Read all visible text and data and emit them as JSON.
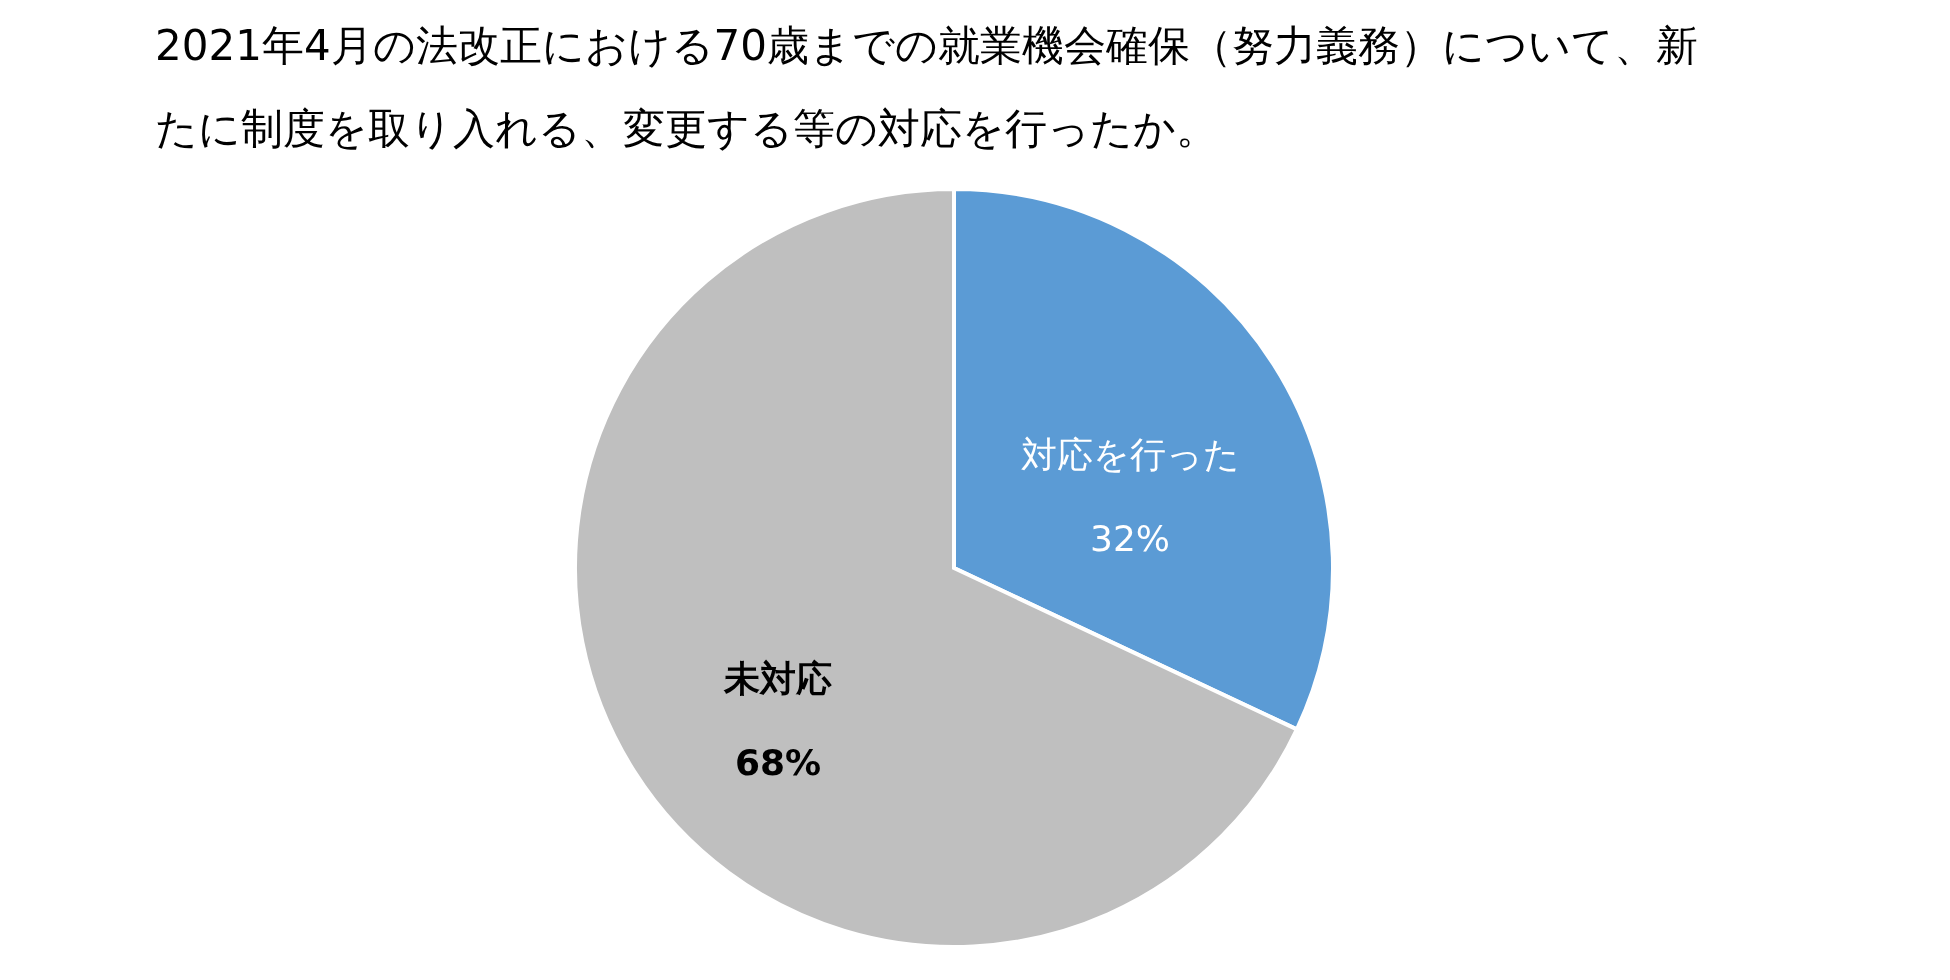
{
  "chart_data": {
    "type": "pie",
    "title": "2021年4月の法改正における70歳までの就業機会確保（努力義務）について、新たに制度を取り入れる、変更する等の対応を行ったか。",
    "categories": [
      "対応を行った",
      "未対応"
    ],
    "values": [
      32,
      68
    ],
    "value_labels": [
      "32%",
      "68%"
    ],
    "colors": [
      "#5b9bd5",
      "#bfbfbf"
    ]
  }
}
